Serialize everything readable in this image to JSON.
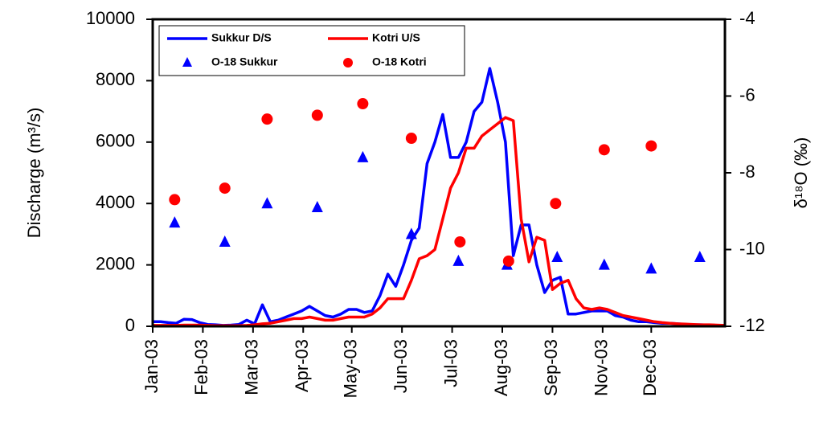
{
  "chart_data": {
    "type": "line",
    "y_label": "Discharge (m³/s)",
    "y2_label": "δ¹⁸O (‰)",
    "ylim": [
      0,
      10000
    ],
    "yticks": [
      0,
      2000,
      4000,
      6000,
      8000,
      10000
    ],
    "y2lim": [
      -12,
      -4
    ],
    "y2ticks": [
      -12,
      -10,
      -8,
      -6,
      -4
    ],
    "xlim": [
      0,
      365
    ],
    "xticks": [
      {
        "value": 0,
        "label": "Jan-03"
      },
      {
        "value": 32,
        "label": "Feb-03"
      },
      {
        "value": 64,
        "label": "Mar-03"
      },
      {
        "value": 96,
        "label": "Apr-03"
      },
      {
        "value": 127,
        "label": "May-03"
      },
      {
        "value": 159,
        "label": "Jun-03"
      },
      {
        "value": 191,
        "label": "Jul-03"
      },
      {
        "value": 223,
        "label": "Aug-03"
      },
      {
        "value": 255,
        "label": "Sep-03"
      },
      {
        "value": 287,
        "label": "Nov-03"
      },
      {
        "value": 318,
        "label": "Dec-03"
      }
    ],
    "x": [
      0,
      5,
      10,
      15,
      20,
      25,
      30,
      35,
      40,
      45,
      50,
      55,
      60,
      65,
      70,
      75,
      80,
      85,
      90,
      95,
      100,
      105,
      110,
      115,
      120,
      125,
      130,
      135,
      140,
      145,
      150,
      155,
      160,
      165,
      170,
      175,
      180,
      185,
      190,
      195,
      200,
      205,
      210,
      215,
      220,
      225,
      230,
      235,
      240,
      245,
      250,
      255,
      260,
      265,
      270,
      275,
      280,
      285,
      290,
      295,
      300,
      305,
      310,
      315,
      320,
      325,
      330,
      335,
      340,
      345,
      350,
      355,
      360,
      365
    ],
    "legend": "upper left",
    "series": [
      {
        "name": "Sukkur D/S",
        "color": "#0000ff",
        "kind": "line",
        "values": [
          150,
          150,
          120,
          100,
          230,
          220,
          120,
          60,
          50,
          30,
          40,
          60,
          200,
          80,
          700,
          150,
          200,
          300,
          400,
          500,
          650,
          500,
          350,
          300,
          400,
          550,
          550,
          450,
          500,
          1000,
          1700,
          1300,
          2000,
          2800,
          3200,
          5300,
          6000,
          6900,
          5500,
          5500,
          6000,
          7000,
          7300,
          8400,
          7300,
          6000,
          2300,
          3300,
          3300,
          2000,
          1100,
          1500,
          1600,
          400,
          400,
          450,
          500,
          500,
          500,
          350,
          300,
          200,
          150,
          150,
          120,
          100,
          100,
          80,
          60,
          50,
          50,
          40,
          30,
          20
        ]
      },
      {
        "name": "Kotri U/S",
        "color": "#ff0000",
        "kind": "line",
        "values": [
          30,
          30,
          30,
          30,
          40,
          40,
          40,
          30,
          20,
          20,
          20,
          20,
          30,
          50,
          80,
          100,
          150,
          200,
          250,
          250,
          300,
          250,
          200,
          200,
          250,
          300,
          300,
          300,
          400,
          600,
          900,
          900,
          900,
          1500,
          2200,
          2300,
          2500,
          3500,
          4500,
          5000,
          5800,
          5800,
          6200,
          6400,
          6600,
          6800,
          6700,
          3500,
          2100,
          2900,
          2800,
          1200,
          1400,
          1500,
          900,
          600,
          550,
          600,
          550,
          450,
          350,
          300,
          250,
          200,
          150,
          120,
          100,
          80,
          70,
          60,
          50,
          50,
          40,
          30
        ]
      },
      {
        "name": "O-18 Sukkur",
        "color": "#0000ff",
        "kind": "scatter",
        "marker": "triangle",
        "axis": "y2",
        "x": [
          14,
          46,
          73,
          105,
          134,
          165,
          195,
          226,
          258,
          288,
          318,
          349
        ],
        "values": [
          -9.3,
          -9.8,
          -8.8,
          -8.9,
          -7.6,
          -9.6,
          -10.3,
          -10.4,
          -10.2,
          -10.4,
          -10.5,
          -10.2
        ]
      },
      {
        "name": "O-18 Kotri",
        "color": "#ff0000",
        "kind": "scatter",
        "marker": "circle",
        "axis": "y2",
        "x": [
          14,
          46,
          73,
          105,
          134,
          165,
          196,
          227,
          257,
          288,
          318
        ],
        "values": [
          -8.7,
          -8.4,
          -6.6,
          -6.5,
          -6.2,
          -7.1,
          -9.8,
          -10.3,
          -8.8,
          -7.4,
          -7.3
        ]
      }
    ]
  }
}
